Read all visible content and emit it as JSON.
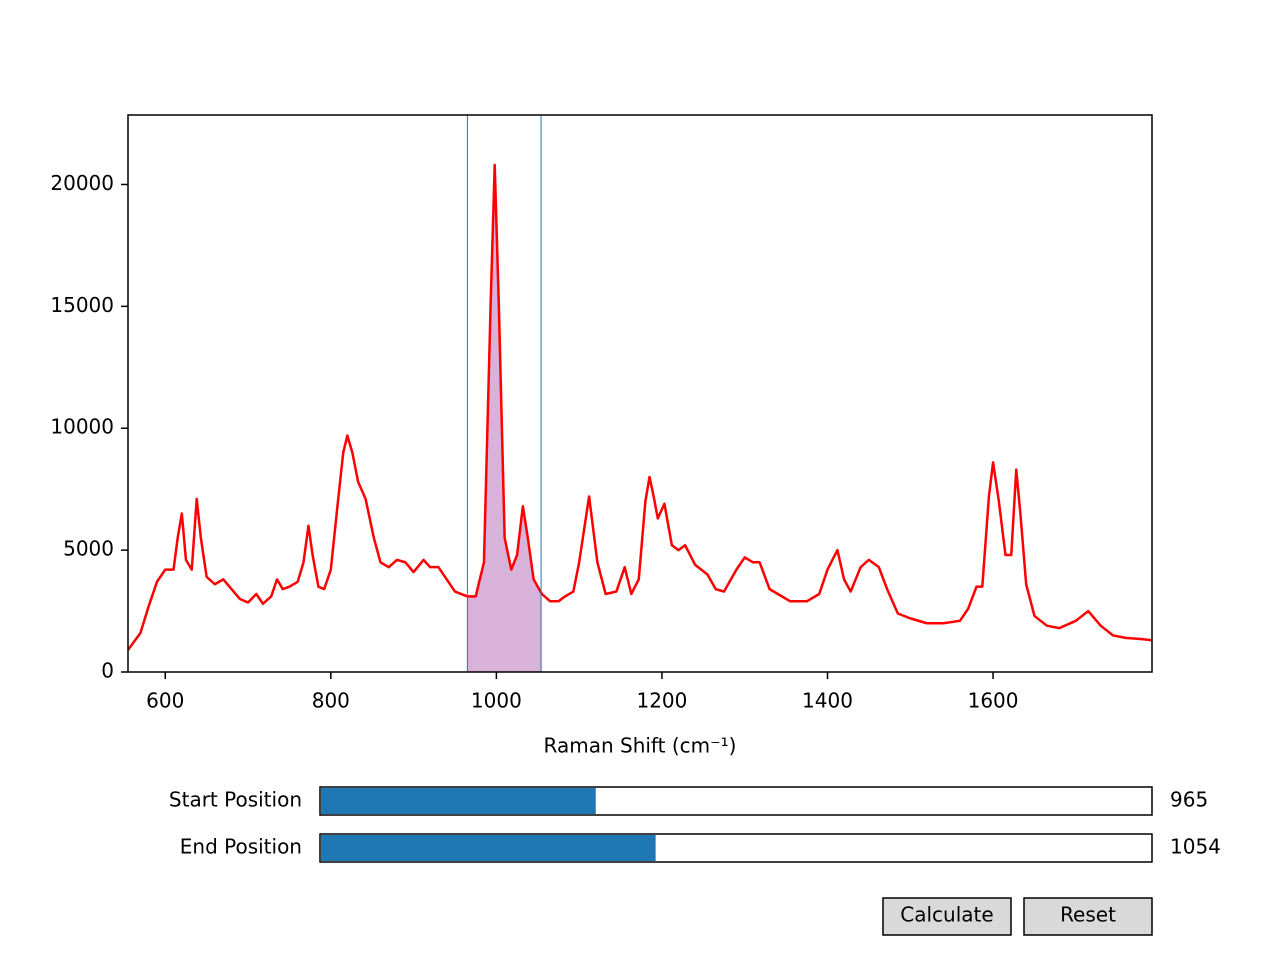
{
  "chart_data": {
    "type": "line",
    "x_label": "Raman Shift (cm⁻¹)",
    "x": [
      555,
      570,
      580,
      590,
      600,
      610,
      615,
      620,
      625,
      632,
      638,
      643,
      650,
      660,
      670,
      680,
      690,
      700,
      710,
      718,
      728,
      735,
      742,
      750,
      760,
      767,
      773,
      778,
      785,
      792,
      800,
      808,
      815,
      820,
      826,
      833,
      842,
      852,
      860,
      870,
      880,
      890,
      900,
      912,
      920,
      930,
      938,
      950,
      965,
      975,
      985,
      993,
      998,
      1003,
      1010,
      1018,
      1025,
      1032,
      1038,
      1045,
      1055,
      1065,
      1075,
      1083,
      1093,
      1100,
      1112,
      1122,
      1132,
      1145,
      1155,
      1163,
      1172,
      1180,
      1185,
      1190,
      1195,
      1203,
      1212,
      1220,
      1228,
      1240,
      1255,
      1265,
      1275,
      1290,
      1300,
      1310,
      1318,
      1330,
      1340,
      1355,
      1375,
      1390,
      1400,
      1412,
      1420,
      1428,
      1440,
      1450,
      1462,
      1472,
      1485,
      1500,
      1520,
      1540,
      1560,
      1570,
      1580,
      1587,
      1595,
      1600,
      1607,
      1615,
      1622,
      1628,
      1633,
      1640,
      1650,
      1665,
      1680,
      1700,
      1715,
      1730,
      1745,
      1760,
      1780,
      1792
    ],
    "series": [
      {
        "color": "#ff0000",
        "values": [
          900,
          1600,
          2700,
          3700,
          4200,
          4200,
          5500,
          6500,
          4600,
          4200,
          7100,
          5500,
          3900,
          3600,
          3800,
          3400,
          3000,
          2850,
          3200,
          2800,
          3100,
          3800,
          3400,
          3500,
          3700,
          4500,
          6000,
          4800,
          3500,
          3400,
          4200,
          6800,
          9000,
          9700,
          9000,
          7800,
          7100,
          5500,
          4500,
          4300,
          4600,
          4500,
          4100,
          4600,
          4300,
          4300,
          3900,
          3300,
          3100,
          3100,
          4500,
          15000,
          20800,
          15000,
          5500,
          4200,
          4800,
          6800,
          5500,
          3800,
          3200,
          2900,
          2900,
          3100,
          3300,
          4500,
          7200,
          4500,
          3200,
          3300,
          4300,
          3200,
          3800,
          7000,
          8000,
          7200,
          6300,
          6900,
          5200,
          5000,
          5200,
          4400,
          4000,
          3400,
          3300,
          4200,
          4700,
          4500,
          4500,
          3400,
          3200,
          2900,
          2900,
          3200,
          4200,
          5000,
          3800,
          3300,
          4300,
          4600,
          4300,
          3400,
          2400,
          2200,
          2000,
          2000,
          2100,
          2600,
          3500,
          3500,
          7200,
          8600,
          7000,
          4800,
          4800,
          8300,
          6500,
          3600,
          2300,
          1900,
          1800,
          2100,
          2500,
          1900,
          1500,
          1400,
          1350,
          1300
        ]
      }
    ],
    "selection_color": "#d8b2d8",
    "span_color": "#1f77b4",
    "xlim": [
      555,
      1792
    ],
    "ylim": [
      0,
      22850
    ],
    "xticks": [
      600,
      800,
      1000,
      1200,
      1400,
      1600
    ],
    "yticks": [
      0,
      5000,
      10000,
      15000,
      20000
    ]
  },
  "controls": {
    "slider_color": "#1f77b4",
    "sliders": [
      {
        "label": "Start Position",
        "value": 965
      },
      {
        "label": "End Position",
        "value": 1054
      }
    ],
    "buttons": [
      "Calculate",
      "Reset"
    ]
  }
}
